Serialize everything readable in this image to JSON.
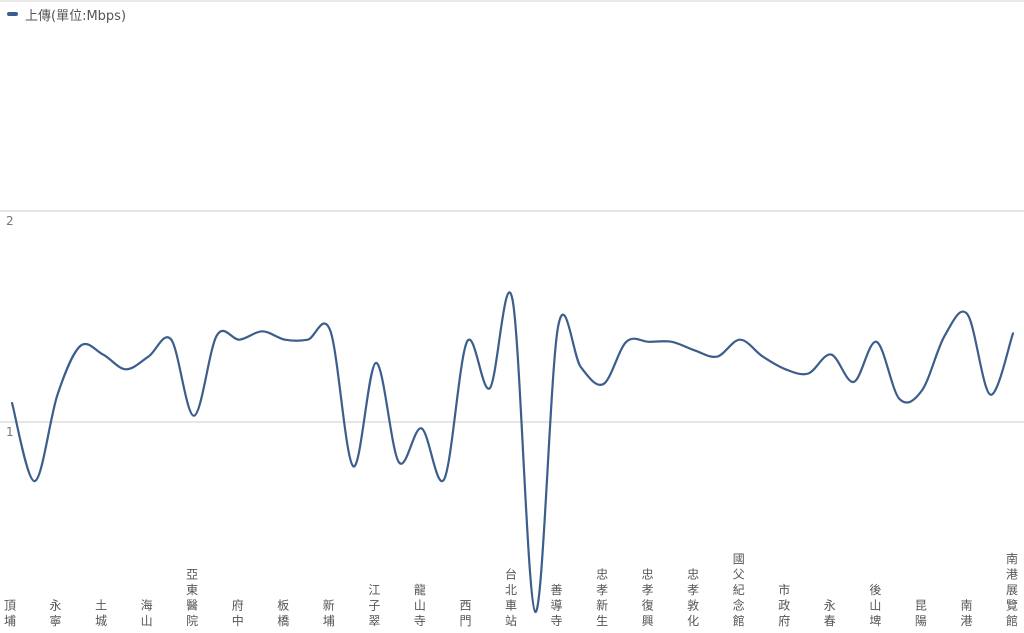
{
  "chart_data": {
    "type": "line",
    "series": [
      {
        "name": "上傳(單位:Mbps)",
        "color": "#3b5e8c",
        "values": [
          1.09,
          0.72,
          1.13,
          1.36,
          1.32,
          1.25,
          1.31,
          1.39,
          1.03,
          1.41,
          1.39,
          1.43,
          1.39,
          1.39,
          1.43,
          0.79,
          1.28,
          0.81,
          0.97,
          0.73,
          1.38,
          1.16,
          1.58,
          0.1,
          1.45,
          1.26,
          1.18,
          1.38,
          1.38,
          1.38,
          1.34,
          1.31,
          1.39,
          1.31,
          1.25,
          1.23,
          1.32,
          1.19,
          1.38,
          1.11,
          1.15,
          1.41,
          1.51,
          1.13,
          1.42
        ]
      }
    ],
    "x_tick_labels": [
      "頂埔",
      "永寧",
      "土城",
      "海山",
      "亞東醫院",
      "府中",
      "板橋",
      "新埔",
      "江子翠",
      "龍山寺",
      "西門",
      "台北車站",
      "善導寺",
      "忠孝新生",
      "忠孝復興",
      "忠孝敦化",
      "國父紀念館",
      "市政府",
      "永春",
      "後山埤",
      "昆陽",
      "南港",
      "南港展覽館"
    ],
    "y_ticks": [
      1,
      2
    ],
    "ylim": [
      0,
      3
    ],
    "grid": true,
    "legend_position": "top-left"
  }
}
